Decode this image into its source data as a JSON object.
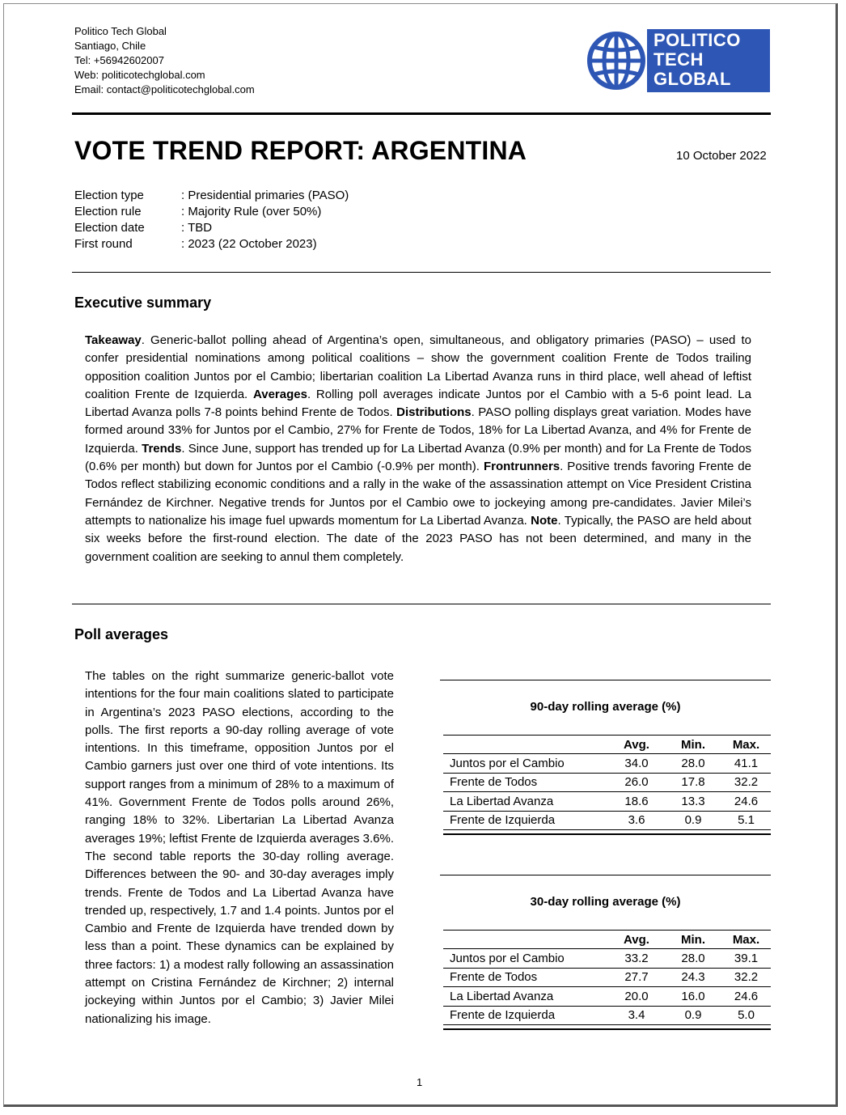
{
  "header": {
    "contact_lines": [
      "Politico Tech Global",
      "Santiago, Chile",
      "Tel: +56942602007",
      "Web: politicotechglobal.com",
      "Email: contact@politicotechglobal.com"
    ],
    "logo_lines": [
      "POLITICO",
      "TECH",
      "GLOBAL"
    ],
    "logo_color": "#2e56b4"
  },
  "title": "VOTE TREND REPORT: ARGENTINA",
  "date": "10 October 2022",
  "meta": [
    {
      "key": "Election type",
      "value": ": Presidential primaries (PASO)"
    },
    {
      "key": "Election rule",
      "value": ": Majority Rule (over 50%)"
    },
    {
      "key": "Election date",
      "value": ": TBD"
    },
    {
      "key": "First round",
      "value": ": 2023 (22 October 2023)"
    }
  ],
  "executive_summary": {
    "heading": "Executive summary",
    "takeaway_label": "Takeaway",
    "takeaway_text": ". Generic-ballot polling ahead of Argentina’s open, simultaneous, and obligatory primaries (PASO) – used to confer presidential nominations among political coalitions – show the government coalition Frente de Todos trailing opposition coalition Juntos por el Cambio; libertarian coalition La Libertad Avanza runs in third place, well ahead of leftist coalition Frente de Izquierda. ",
    "averages_label": "Averages",
    "averages_text": ". Rolling poll averages indicate Juntos por el Cambio with a 5-6 point lead. La Libertad Avanza polls 7-8 points behind Frente de Todos.  ",
    "distributions_label": "Distributions",
    "distributions_text": ". PASO polling displays great variation. Modes have formed around 33% for Juntos por el Cambio, 27% for Frente de Todos, 18% for La Libertad Avanza, and 4% for Frente de Izquierda. ",
    "trends_label": "Trends",
    "trends_text": ". Since June, support has trended up for La Libertad Avanza (0.9% per month) and for La Frente de Todos (0.6% per month) but down for Juntos por el Cambio (-0.9% per month). ",
    "frontrunners_label": "Frontrunners",
    "frontrunners_text": ". Positive trends favoring Frente de Todos reflect stabilizing economic conditions and a rally in the wake of the assassination attempt on Vice President Cristina Fernández de Kirchner. Negative trends for Juntos por el Cambio owe to jockeying among pre-candidates. Javier Milei’s attempts to nationalize his image fuel upwards momentum for La Libertad Avanza. ",
    "note_label": "Note",
    "note_text": ". Typically, the PASO are held about six weeks before the first-round election. The date of the 2023 PASO has not been determined, and many in the government coalition are seeking to annul them completely."
  },
  "poll_averages": {
    "heading": "Poll averages",
    "body": "The tables on the right summarize generic-ballot vote intentions for the four main coalitions slated to participate in Argentina’s 2023 PASO elections, according to the polls. The first reports a 90-day rolling average of vote intentions. In this timeframe, opposition Juntos por el Cambio garners just over one third of vote intentions. Its support ranges from a minimum of 28% to a maximum of 41%. Government Frente de Todos polls around 26%, ranging 18% to 32%. Libertarian La Libertad Avanza averages 19%; leftist Frente de Izquierda averages 3.6%. The second table reports the 30-day rolling average. Differences between the 90- and 30-day averages imply trends. Frente de Todos and La Libertad Avanza have trended up, respectively, 1.7 and 1.4 points. Juntos por el Cambio and Frente de Izquierda have trended down by less than a point. These dynamics can be explained by three factors: 1) a modest rally following an assassination attempt on Cristina Fernández de Kirchner; 2) internal jockeying within Juntos por el Cambio; 3) Javier Milei nationalizing his image."
  },
  "tables": [
    {
      "title": "90-day rolling average (%)",
      "columns": [
        "",
        "Avg.",
        "Min.",
        "Max."
      ],
      "rows": [
        [
          "Juntos por el Cambio",
          "34.0",
          "28.0",
          "41.1"
        ],
        [
          "Frente de Todos",
          "26.0",
          "17.8",
          "32.2"
        ],
        [
          "La Libertad Avanza",
          "18.6",
          "13.3",
          "24.6"
        ],
        [
          "Frente de Izquierda",
          "3.6",
          "0.9",
          "5.1"
        ]
      ]
    },
    {
      "title": "30-day rolling average (%)",
      "columns": [
        "",
        "Avg.",
        "Min.",
        "Max."
      ],
      "rows": [
        [
          "Juntos por el Cambio",
          "33.2",
          "28.0",
          "39.1"
        ],
        [
          "Frente de Todos",
          "27.7",
          "24.3",
          "32.2"
        ],
        [
          "La Libertad Avanza",
          "20.0",
          "16.0",
          "24.6"
        ],
        [
          "Frente de Izquierda",
          "3.4",
          "0.9",
          "5.0"
        ]
      ]
    }
  ],
  "page_number": "1"
}
